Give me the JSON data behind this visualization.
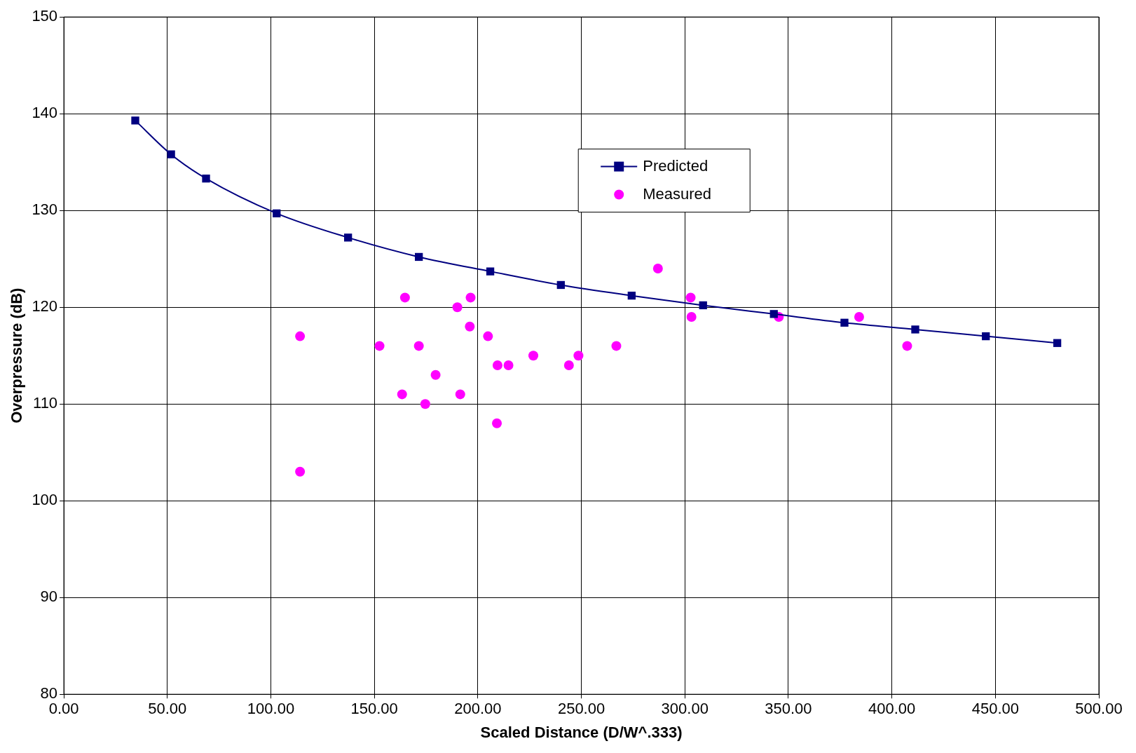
{
  "chart_data": {
    "type": "line",
    "xlabel": "Scaled Distance (D/W^.333)",
    "ylabel": "Overpressure (dB)",
    "xlim": [
      0,
      500
    ],
    "xticks": [
      {
        "value": 0,
        "label": "0.00"
      },
      {
        "value": 50,
        "label": "50.00"
      },
      {
        "value": 100,
        "label": "100.00"
      },
      {
        "value": 150,
        "label": "150.00"
      },
      {
        "value": 200,
        "label": "200.00"
      },
      {
        "value": 250,
        "label": "250.00"
      },
      {
        "value": 300,
        "label": "300.00"
      },
      {
        "value": 350,
        "label": "350.00"
      },
      {
        "value": 400,
        "label": "400.00"
      },
      {
        "value": 450,
        "label": "450.00"
      },
      {
        "value": 500,
        "label": "500.00"
      }
    ],
    "ylim": [
      80,
      150
    ],
    "yticks": [
      80,
      90,
      100,
      110,
      120,
      130,
      140,
      150
    ],
    "grid": true,
    "legend": "top",
    "series": [
      {
        "name": "Predicted",
        "type": "line",
        "color": "#000080",
        "marker": "square",
        "line_style": "solid",
        "x": [
          34.5,
          51.8,
          68.7,
          102.8,
          137.3,
          171.5,
          206,
          240.1,
          274.3,
          308.8,
          343,
          377.1,
          411.3,
          445.4,
          479.9
        ],
        "values": [
          139.3,
          135.8,
          133.3,
          129.7,
          127.2,
          125.2,
          123.7,
          122.3,
          121.2,
          120.2,
          119.3,
          118.4,
          117.7,
          117.0,
          116.3
        ]
      },
      {
        "name": "Measured",
        "type": "scatter",
        "color": "#ff00ff",
        "marker": "circle",
        "x": [
          114.1,
          114.1,
          152.5,
          163.4,
          164.8,
          171.5,
          174.6,
          179.6,
          190.1,
          191.5,
          196.1,
          196.5,
          204.9,
          209.2,
          209.5,
          214.8,
          226.8,
          244.0,
          248.6,
          266.9,
          287.0,
          302.8,
          303.2,
          345.4,
          384.2,
          407.4
        ],
        "values": [
          117,
          103,
          116,
          111,
          121,
          116,
          110,
          113,
          120,
          111,
          118,
          121,
          117,
          108,
          114,
          114,
          115,
          114,
          115,
          116,
          124,
          121,
          119,
          119,
          119,
          116
        ]
      }
    ]
  }
}
